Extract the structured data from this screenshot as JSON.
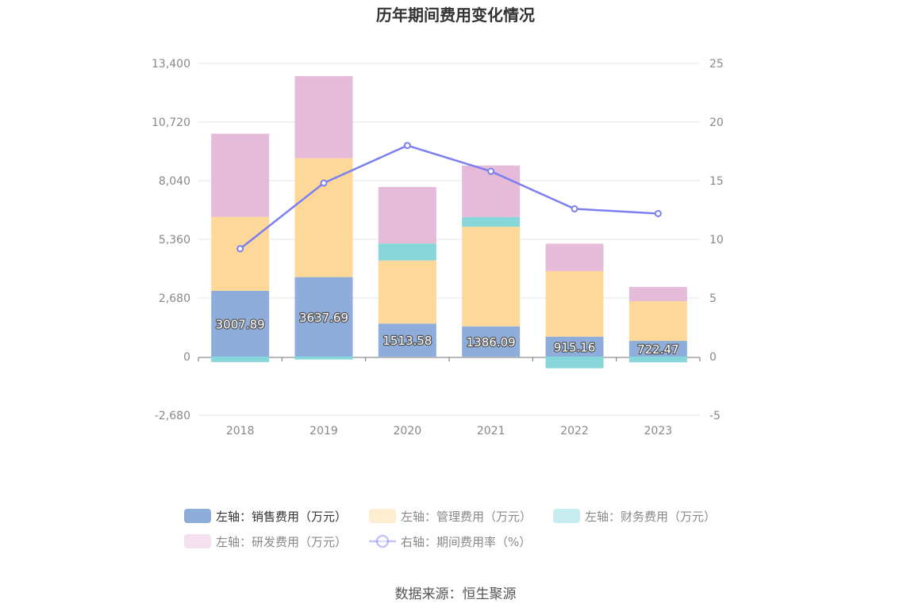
{
  "title": "历年期间费用变化情况",
  "source": "数据来源：恒生聚源",
  "chart_data": {
    "type": "bar",
    "stacked": true,
    "categories": [
      "2018",
      "2019",
      "2020",
      "2021",
      "2022",
      "2023"
    ],
    "left_axis": {
      "ylim": [
        -2680,
        13400
      ],
      "ticks": [
        -2680,
        0,
        2680,
        5360,
        8040,
        10720,
        13400
      ],
      "tick_labels": [
        "-2,680",
        "0",
        "2,680",
        "5,360",
        "8,040",
        "10,720",
        "13,400"
      ]
    },
    "right_axis": {
      "ylim": [
        -5,
        25
      ],
      "ticks": [
        -5,
        0,
        5,
        10,
        15,
        20,
        25
      ],
      "tick_labels": [
        "-5",
        "0",
        "5",
        "10",
        "15",
        "20",
        "25"
      ]
    },
    "series": [
      {
        "name": "左轴：销售费用（万元）",
        "axis": "left",
        "type": "bar",
        "color": "#8eadda",
        "values": [
          3007.89,
          3637.69,
          1513.58,
          1386.09,
          915.16,
          722.47
        ],
        "labels": [
          "3007.89",
          "3637.69",
          "1513.58",
          "1386.09",
          "915.16",
          "722.47"
        ]
      },
      {
        "name": "左轴：管理费用（万元）",
        "axis": "left",
        "type": "bar",
        "color": "#fed899",
        "values": [
          3380,
          5430,
          2880,
          4550,
          3000,
          1810
        ]
      },
      {
        "name": "左轴：财务费用（万元）",
        "axis": "left",
        "type": "bar",
        "color": "#86d6da",
        "values": [
          -250,
          -130,
          780,
          440,
          -530,
          -260
        ]
      },
      {
        "name": "左轴：研发费用（万元）",
        "axis": "left",
        "type": "bar",
        "color": "#e6bad9",
        "values": [
          3800,
          3750,
          2580,
          2360,
          1250,
          650
        ]
      },
      {
        "name": "右轴：期间费用率（%）",
        "axis": "right",
        "type": "line",
        "color": "#7b7ff0",
        "values": [
          9.2,
          14.8,
          18.0,
          15.8,
          12.6,
          12.2
        ]
      }
    ],
    "legend_position": "bottom",
    "grid": true
  },
  "legend": {
    "active_text_color": "#333333",
    "inactive_text_color": "#888888",
    "items": [
      {
        "label": "左轴：销售费用（万元）",
        "series": 0,
        "active": true,
        "swatch_opacity": 1
      },
      {
        "label": "左轴：管理费用（万元）",
        "series": 1,
        "active": false,
        "swatch_opacity": 0.45
      },
      {
        "label": "左轴：财务费用（万元）",
        "series": 2,
        "active": false,
        "swatch_opacity": 0.45
      },
      {
        "label": "左轴：研发费用（万元）",
        "series": 3,
        "active": false,
        "swatch_opacity": 0.45
      },
      {
        "label": "右轴：期间费用率（%）",
        "series": 4,
        "active": false,
        "swatch_opacity": 0.45
      }
    ]
  }
}
